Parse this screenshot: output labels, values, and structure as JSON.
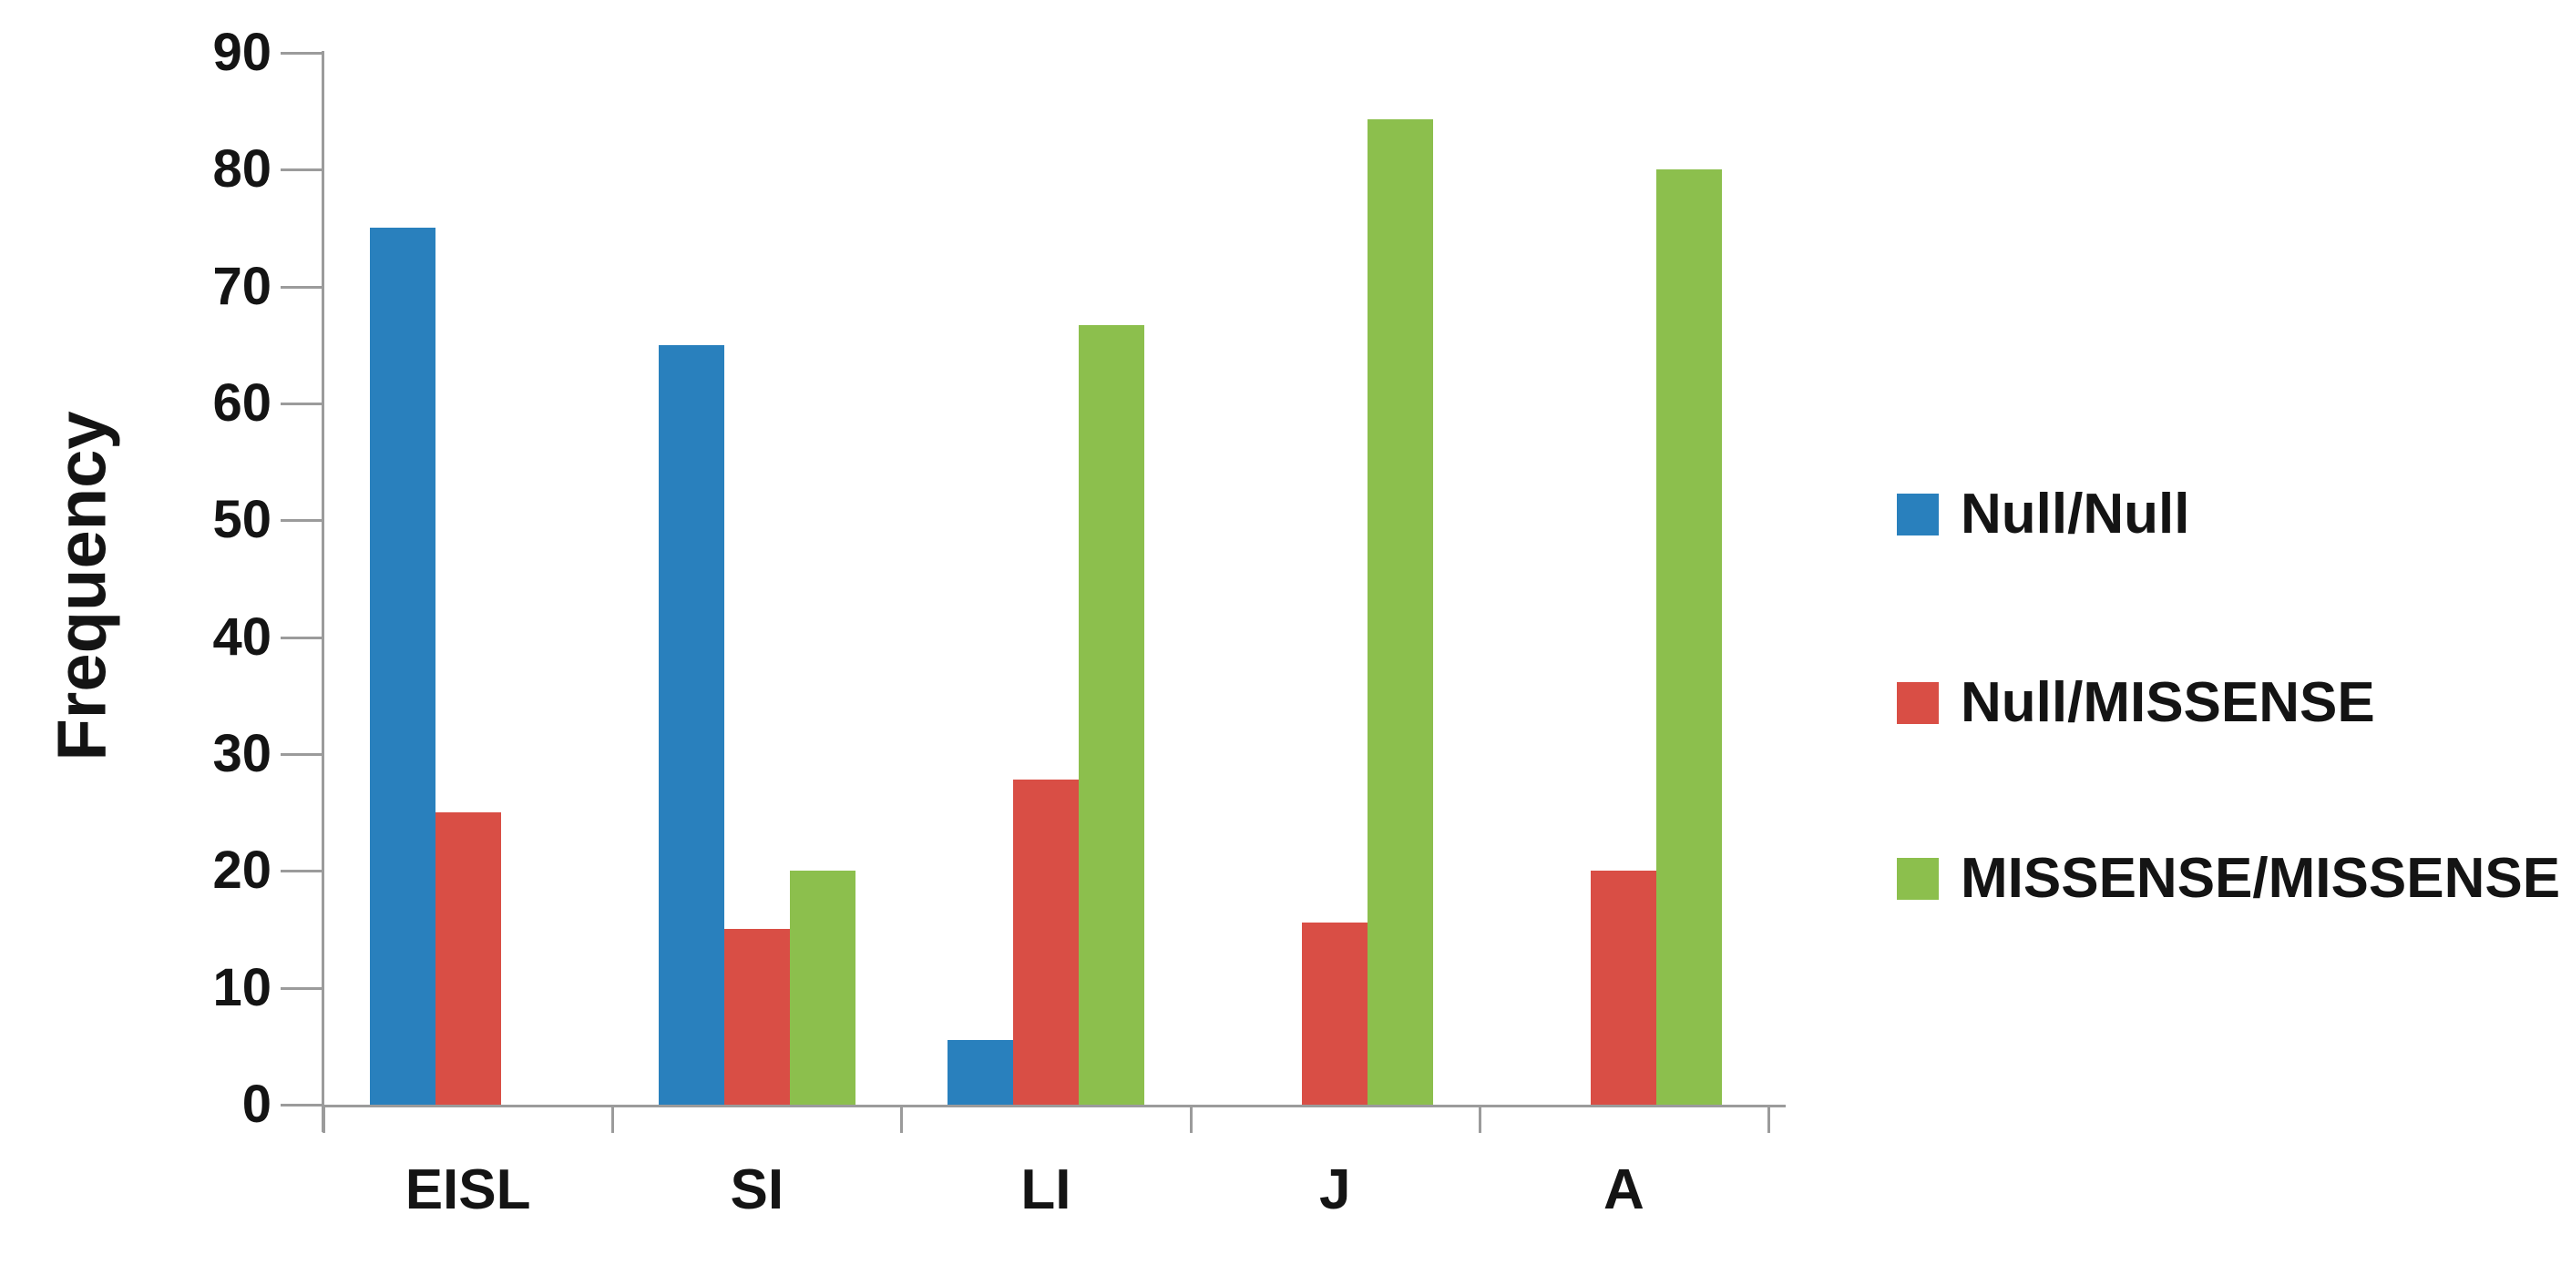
{
  "chart_data": {
    "type": "bar",
    "title": "",
    "xlabel": "",
    "ylabel": "Frequency",
    "ylim": [
      0,
      90
    ],
    "yticks": [
      0,
      10,
      20,
      30,
      40,
      50,
      60,
      70,
      80,
      90
    ],
    "grid": false,
    "legend_position": "right",
    "categories": [
      "EISL",
      "SI",
      "LI",
      "J",
      "A"
    ],
    "series": [
      {
        "name": "Null/Null",
        "color": "#2980BD",
        "values": [
          75,
          65,
          5.5,
          0,
          0
        ]
      },
      {
        "name": "Null/MISSENSE",
        "color": "#D94E45",
        "values": [
          25,
          15,
          27.8,
          15.6,
          20
        ]
      },
      {
        "name": "MISSENSE/MISSENSE",
        "color": "#8CBF4D",
        "values": [
          0,
          20,
          66.7,
          84.3,
          80
        ]
      }
    ]
  },
  "colors": {
    "axis": "#9b9b9b",
    "text": "#141414",
    "background": "#ffffff"
  }
}
